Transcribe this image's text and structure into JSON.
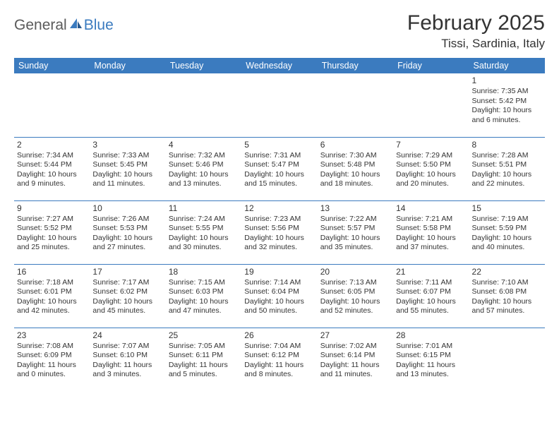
{
  "brand": {
    "name1": "General",
    "name2": "Blue"
  },
  "title": "February 2025",
  "location": "Tissi, Sardinia, Italy",
  "colors": {
    "header_bg": "#3b7bbf",
    "header_text": "#ffffff",
    "body_text": "#333333",
    "row_border": "#3b7bbf",
    "brand_gray": "#5a5a5a",
    "brand_blue": "#3b7bbf",
    "background": "#ffffff"
  },
  "day_headers": [
    "Sunday",
    "Monday",
    "Tuesday",
    "Wednesday",
    "Thursday",
    "Friday",
    "Saturday"
  ],
  "weeks": [
    [
      null,
      null,
      null,
      null,
      null,
      null,
      {
        "n": "1",
        "sr": "7:35 AM",
        "ss": "5:42 PM",
        "dl": "10 hours and 6 minutes."
      }
    ],
    [
      {
        "n": "2",
        "sr": "7:34 AM",
        "ss": "5:44 PM",
        "dl": "10 hours and 9 minutes."
      },
      {
        "n": "3",
        "sr": "7:33 AM",
        "ss": "5:45 PM",
        "dl": "10 hours and 11 minutes."
      },
      {
        "n": "4",
        "sr": "7:32 AM",
        "ss": "5:46 PM",
        "dl": "10 hours and 13 minutes."
      },
      {
        "n": "5",
        "sr": "7:31 AM",
        "ss": "5:47 PM",
        "dl": "10 hours and 15 minutes."
      },
      {
        "n": "6",
        "sr": "7:30 AM",
        "ss": "5:48 PM",
        "dl": "10 hours and 18 minutes."
      },
      {
        "n": "7",
        "sr": "7:29 AM",
        "ss": "5:50 PM",
        "dl": "10 hours and 20 minutes."
      },
      {
        "n": "8",
        "sr": "7:28 AM",
        "ss": "5:51 PM",
        "dl": "10 hours and 22 minutes."
      }
    ],
    [
      {
        "n": "9",
        "sr": "7:27 AM",
        "ss": "5:52 PM",
        "dl": "10 hours and 25 minutes."
      },
      {
        "n": "10",
        "sr": "7:26 AM",
        "ss": "5:53 PM",
        "dl": "10 hours and 27 minutes."
      },
      {
        "n": "11",
        "sr": "7:24 AM",
        "ss": "5:55 PM",
        "dl": "10 hours and 30 minutes."
      },
      {
        "n": "12",
        "sr": "7:23 AM",
        "ss": "5:56 PM",
        "dl": "10 hours and 32 minutes."
      },
      {
        "n": "13",
        "sr": "7:22 AM",
        "ss": "5:57 PM",
        "dl": "10 hours and 35 minutes."
      },
      {
        "n": "14",
        "sr": "7:21 AM",
        "ss": "5:58 PM",
        "dl": "10 hours and 37 minutes."
      },
      {
        "n": "15",
        "sr": "7:19 AM",
        "ss": "5:59 PM",
        "dl": "10 hours and 40 minutes."
      }
    ],
    [
      {
        "n": "16",
        "sr": "7:18 AM",
        "ss": "6:01 PM",
        "dl": "10 hours and 42 minutes."
      },
      {
        "n": "17",
        "sr": "7:17 AM",
        "ss": "6:02 PM",
        "dl": "10 hours and 45 minutes."
      },
      {
        "n": "18",
        "sr": "7:15 AM",
        "ss": "6:03 PM",
        "dl": "10 hours and 47 minutes."
      },
      {
        "n": "19",
        "sr": "7:14 AM",
        "ss": "6:04 PM",
        "dl": "10 hours and 50 minutes."
      },
      {
        "n": "20",
        "sr": "7:13 AM",
        "ss": "6:05 PM",
        "dl": "10 hours and 52 minutes."
      },
      {
        "n": "21",
        "sr": "7:11 AM",
        "ss": "6:07 PM",
        "dl": "10 hours and 55 minutes."
      },
      {
        "n": "22",
        "sr": "7:10 AM",
        "ss": "6:08 PM",
        "dl": "10 hours and 57 minutes."
      }
    ],
    [
      {
        "n": "23",
        "sr": "7:08 AM",
        "ss": "6:09 PM",
        "dl": "11 hours and 0 minutes."
      },
      {
        "n": "24",
        "sr": "7:07 AM",
        "ss": "6:10 PM",
        "dl": "11 hours and 3 minutes."
      },
      {
        "n": "25",
        "sr": "7:05 AM",
        "ss": "6:11 PM",
        "dl": "11 hours and 5 minutes."
      },
      {
        "n": "26",
        "sr": "7:04 AM",
        "ss": "6:12 PM",
        "dl": "11 hours and 8 minutes."
      },
      {
        "n": "27",
        "sr": "7:02 AM",
        "ss": "6:14 PM",
        "dl": "11 hours and 11 minutes."
      },
      {
        "n": "28",
        "sr": "7:01 AM",
        "ss": "6:15 PM",
        "dl": "11 hours and 13 minutes."
      },
      null
    ]
  ],
  "labels": {
    "sunrise": "Sunrise:",
    "sunset": "Sunset:",
    "daylight": "Daylight:"
  }
}
